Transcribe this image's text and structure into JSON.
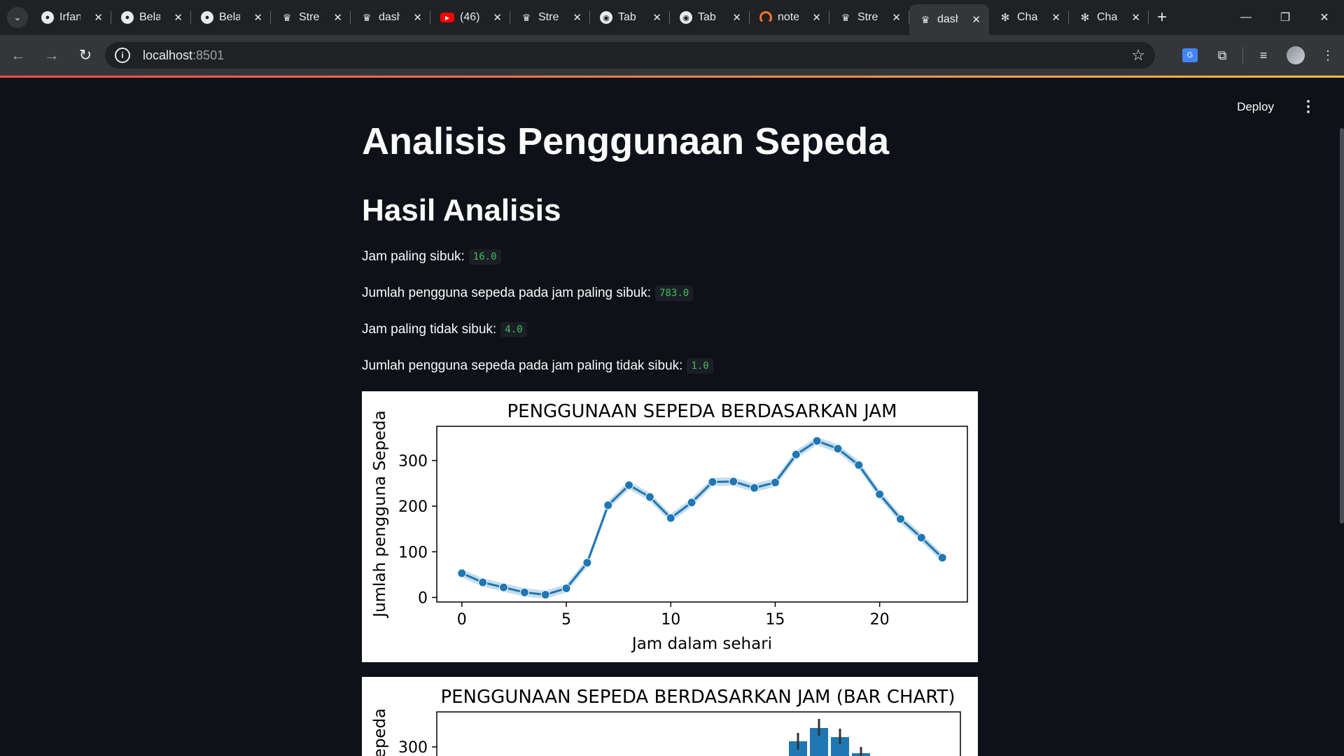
{
  "browser": {
    "tabs": [
      {
        "label": "Irfan",
        "favicon": "github-icon"
      },
      {
        "label": "Bela",
        "favicon": "github-icon"
      },
      {
        "label": "Bela",
        "favicon": "github-icon"
      },
      {
        "label": "Stre",
        "favicon": "streamlit-icon"
      },
      {
        "label": "dash",
        "favicon": "streamlit-icon"
      },
      {
        "label": "(46)",
        "favicon": "youtube-icon"
      },
      {
        "label": "Stre",
        "favicon": "streamlit-icon"
      },
      {
        "label": "Tab",
        "favicon": "chrome-icon"
      },
      {
        "label": "Tab",
        "favicon": "chrome-icon"
      },
      {
        "label": "note",
        "favicon": "jupyter-icon"
      },
      {
        "label": "Stre",
        "favicon": "streamlit-icon"
      },
      {
        "label": "dash",
        "favicon": "streamlit-icon",
        "active": true
      },
      {
        "label": "Cha",
        "favicon": "chatgpt-icon"
      },
      {
        "label": "Cha",
        "favicon": "chatgpt-icon"
      }
    ],
    "url_host": "localhost",
    "url_port": ":8501"
  },
  "app": {
    "deploy_label": "Deploy",
    "title": "Analisis Penggunaan Sepeda",
    "subtitle": "Hasil Analisis",
    "stats": [
      {
        "label": "Jam paling sibuk:",
        "value": "16.0"
      },
      {
        "label": "Jumlah pengguna sepeda pada jam paling sibuk:",
        "value": "783.0"
      },
      {
        "label": "Jam paling tidak sibuk:",
        "value": "4.0"
      },
      {
        "label": "Jumlah pengguna sepeda pada jam paling tidak sibuk:",
        "value": "1.0"
      }
    ]
  },
  "chart_data": [
    {
      "type": "line",
      "title": "PENGGUNAAN SEPEDA BERDASARKAN JAM",
      "xlabel": "Jam dalam sehari",
      "ylabel": "Jumlah pengguna Sepeda",
      "x": [
        0,
        1,
        2,
        3,
        4,
        5,
        6,
        7,
        8,
        9,
        10,
        11,
        12,
        13,
        14,
        15,
        16,
        17,
        18,
        19,
        20,
        21,
        22,
        23
      ],
      "y": [
        53,
        33,
        22,
        11,
        6,
        20,
        76,
        202,
        246,
        220,
        174,
        208,
        253,
        254,
        240,
        252,
        313,
        343,
        326,
        290,
        226,
        172,
        131,
        87
      ],
      "xticks": [
        0,
        5,
        10,
        15,
        20
      ],
      "yticks": [
        0,
        100,
        200,
        300
      ],
      "xlim": [
        -1.2,
        24.2
      ],
      "ylim": [
        -10,
        375
      ],
      "color": "#1f77b4",
      "grid": false
    },
    {
      "type": "bar",
      "title": "PENGGUNAAN SEPEDA BERDASARKAN JAM (BAR CHART)",
      "ylabel": "Jumlah pengguna Sepeda",
      "ylabel_visible": "Sepeda",
      "yticks_visible": [
        300
      ],
      "color": "#1f77b4"
    }
  ]
}
